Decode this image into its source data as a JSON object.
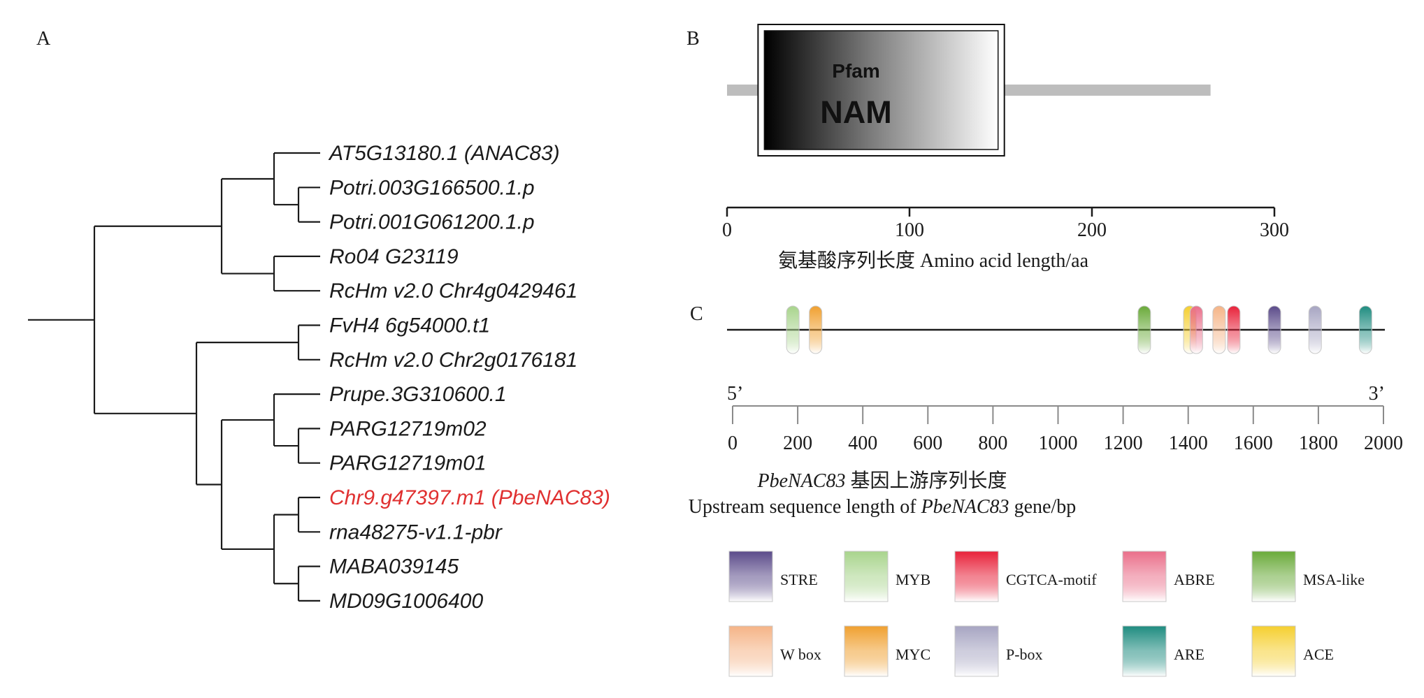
{
  "panels": {
    "a": {
      "letter": "A"
    },
    "b": {
      "letter": "B"
    },
    "c": {
      "letter": "C"
    }
  },
  "tree": {
    "leaves": [
      {
        "label": "AT5G13180.1 (ANAC83)",
        "color": "#1a1a1a"
      },
      {
        "label": "Potri.003G166500.1.p",
        "color": "#1a1a1a"
      },
      {
        "label": "Potri.001G061200.1.p",
        "color": "#1a1a1a"
      },
      {
        "label": "Ro04 G23119",
        "color": "#1a1a1a"
      },
      {
        "label": "RcHm v2.0 Chr4g0429461",
        "color": "#1a1a1a"
      },
      {
        "label": "FvH4 6g54000.t1",
        "color": "#1a1a1a"
      },
      {
        "label": "RcHm v2.0 Chr2g0176181",
        "color": "#1a1a1a"
      },
      {
        "label": "Prupe.3G310600.1",
        "color": "#1a1a1a"
      },
      {
        "label": "PARG12719m02",
        "color": "#1a1a1a"
      },
      {
        "label": "PARG12719m01",
        "color": "#1a1a1a"
      },
      {
        "label": "Chr9.g47397.m1 (PbeNAC83)",
        "color": "#e03030"
      },
      {
        "label": "rna48275-v1.1-pbr",
        "color": "#1a1a1a"
      },
      {
        "label": "MABA039145",
        "color": "#1a1a1a"
      },
      {
        "label": "MD09G1006400",
        "color": "#1a1a1a"
      }
    ]
  },
  "domain": {
    "source": "Pfam",
    "name": "NAM",
    "protein_length": 265,
    "domain_start": 17,
    "domain_end": 152,
    "axis_ticks": [
      "0",
      "100",
      "200",
      "300"
    ],
    "axis_label": "氨基酸序列长度 Amino acid length/aa"
  },
  "promoter": {
    "end5": "5’",
    "end3": "3’",
    "axis_ticks": [
      "0",
      "200",
      "400",
      "600",
      "800",
      "1000",
      "1200",
      "1400",
      "1600",
      "1800",
      "2000"
    ],
    "axis_label_line1_gene": "PbeNAC83",
    "axis_label_line1_text": " 基因上游序列长度",
    "axis_label_line2_text": "Upstream sequence length of ",
    "axis_label_line2_gene": "PbeNAC83",
    "axis_label_line2_suffix": " gene/bp",
    "elements": [
      {
        "type": "MYB",
        "position": 185
      },
      {
        "type": "MYC",
        "position": 255
      },
      {
        "type": "MSA-like",
        "position": 1265
      },
      {
        "type": "ACE",
        "position": 1405
      },
      {
        "type": "ABRE",
        "position": 1425
      },
      {
        "type": "W box",
        "position": 1495
      },
      {
        "type": "CGTCA-motif",
        "position": 1540
      },
      {
        "type": "STRE",
        "position": 1665
      },
      {
        "type": "P-box",
        "position": 1790
      },
      {
        "type": "ARE",
        "position": 1945
      }
    ]
  },
  "legend": [
    {
      "label": "STRE",
      "color": "#5b4b8a"
    },
    {
      "label": "MYB",
      "color": "#a8d48c"
    },
    {
      "label": "CGTCA-motif",
      "color": "#e8223a"
    },
    {
      "label": "ABRE",
      "color": "#ea6f8a"
    },
    {
      "label": "MSA-like",
      "color": "#6aaa3a"
    },
    {
      "label": "W box",
      "color": "#f5b487"
    },
    {
      "label": "MYC",
      "color": "#f0a030"
    },
    {
      "label": "P-box",
      "color": "#a7a5c2"
    },
    {
      "label": "ARE",
      "color": "#1f8c80"
    },
    {
      "label": "ACE",
      "color": "#f5cf30"
    }
  ]
}
